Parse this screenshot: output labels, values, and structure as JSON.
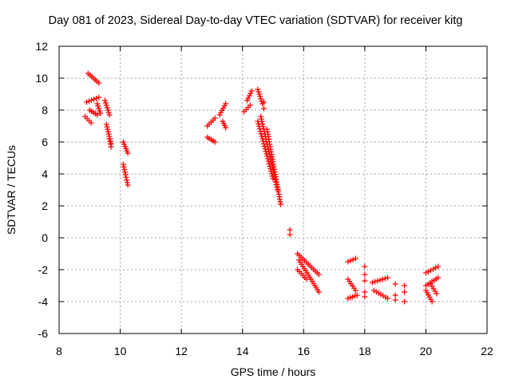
{
  "chart_data": {
    "type": "scatter",
    "title": "Day 081 of 2023, Sidereal Day-to-day VTEC variation (SDTVAR) for receiver kitg",
    "xlabel": "GPS time / hours",
    "ylabel": "SDTVAR / TECUs",
    "xlim": [
      8,
      22
    ],
    "ylim": [
      -6,
      12
    ],
    "xticks": [
      "8",
      "10",
      "12",
      "14",
      "16",
      "18",
      "20",
      "22"
    ],
    "yticks": [
      "-6",
      "-4",
      "-2",
      "0",
      "2",
      "4",
      "6",
      "8",
      "10",
      "12"
    ],
    "grid": true,
    "marker": "plus",
    "color": "#ff0000",
    "tracks": [
      {
        "x0": 8.95,
        "y0": 10.3,
        "x1": 9.3,
        "y1": 9.7
      },
      {
        "x0": 8.85,
        "y0": 7.6,
        "x1": 9.05,
        "y1": 7.2
      },
      {
        "x0": 8.9,
        "y0": 8.5,
        "x1": 9.3,
        "y1": 8.8
      },
      {
        "x0": 9.0,
        "y0": 8.0,
        "x1": 9.25,
        "y1": 7.7
      },
      {
        "x0": 9.25,
        "y0": 8.4,
        "x1": 9.35,
        "y1": 7.8
      },
      {
        "x0": 9.5,
        "y0": 8.6,
        "x1": 9.65,
        "y1": 7.7
      },
      {
        "x0": 9.55,
        "y0": 7.1,
        "x1": 9.7,
        "y1": 5.9
      },
      {
        "x0": 9.65,
        "y0": 6.2,
        "x1": 9.7,
        "y1": 5.7
      },
      {
        "x0": 10.1,
        "y0": 6.0,
        "x1": 10.25,
        "y1": 5.3
      },
      {
        "x0": 10.1,
        "y0": 4.6,
        "x1": 10.25,
        "y1": 3.3
      },
      {
        "x0": 12.85,
        "y0": 6.3,
        "x1": 13.1,
        "y1": 6.0
      },
      {
        "x0": 12.85,
        "y0": 7.0,
        "x1": 13.1,
        "y1": 7.5
      },
      {
        "x0": 13.25,
        "y0": 7.7,
        "x1": 13.45,
        "y1": 8.4
      },
      {
        "x0": 13.35,
        "y0": 7.3,
        "x1": 13.45,
        "y1": 6.9
      },
      {
        "x0": 14.15,
        "y0": 8.6,
        "x1": 14.3,
        "y1": 9.2
      },
      {
        "x0": 14.05,
        "y0": 7.9,
        "x1": 14.25,
        "y1": 8.3
      },
      {
        "x0": 14.5,
        "y0": 9.3,
        "x1": 14.65,
        "y1": 8.4
      },
      {
        "x0": 14.5,
        "y0": 7.3,
        "x1": 15.0,
        "y1": 3.7
      },
      {
        "x0": 14.6,
        "y0": 7.6,
        "x1": 15.15,
        "y1": 3.0
      },
      {
        "x0": 14.8,
        "y0": 6.8,
        "x1": 15.25,
        "y1": 2.1
      },
      {
        "x0": 15.8,
        "y0": -1.0,
        "x1": 16.5,
        "y1": -2.3
      },
      {
        "x0": 15.85,
        "y0": -1.4,
        "x1": 16.5,
        "y1": -3.4
      },
      {
        "x0": 15.8,
        "y0": -2.0,
        "x1": 16.1,
        "y1": -2.6
      },
      {
        "x0": 17.45,
        "y0": -1.5,
        "x1": 17.7,
        "y1": -1.3
      },
      {
        "x0": 17.45,
        "y0": -2.6,
        "x1": 17.7,
        "y1": -3.3
      },
      {
        "x0": 17.45,
        "y0": -3.8,
        "x1": 17.75,
        "y1": -3.6
      },
      {
        "x0": 18.25,
        "y0": -2.8,
        "x1": 18.75,
        "y1": -2.5
      },
      {
        "x0": 18.3,
        "y0": -3.3,
        "x1": 18.75,
        "y1": -3.8
      },
      {
        "x0": 20.0,
        "y0": -2.2,
        "x1": 20.4,
        "y1": -1.8
      },
      {
        "x0": 20.0,
        "y0": -3.0,
        "x1": 20.4,
        "y1": -2.5
      },
      {
        "x0": 20.0,
        "y0": -3.3,
        "x1": 20.2,
        "y1": -4.0
      },
      {
        "x0": 20.15,
        "y0": -2.9,
        "x1": 20.35,
        "y1": -3.5
      }
    ],
    "points": [
      {
        "x": 14.7,
        "y": 8.5
      },
      {
        "x": 14.7,
        "y": 8.1
      },
      {
        "x": 15.55,
        "y": 0.5
      },
      {
        "x": 15.55,
        "y": 0.2
      },
      {
        "x": 18.0,
        "y": -1.8
      },
      {
        "x": 18.0,
        "y": -2.3
      },
      {
        "x": 18.0,
        "y": -2.7
      },
      {
        "x": 18.0,
        "y": -3.4
      },
      {
        "x": 18.0,
        "y": -3.7
      },
      {
        "x": 19.0,
        "y": -2.9
      },
      {
        "x": 19.0,
        "y": -3.6
      },
      {
        "x": 19.0,
        "y": -3.9
      },
      {
        "x": 19.3,
        "y": -3.0
      },
      {
        "x": 19.3,
        "y": -3.4
      },
      {
        "x": 19.3,
        "y": -4.0
      }
    ]
  }
}
